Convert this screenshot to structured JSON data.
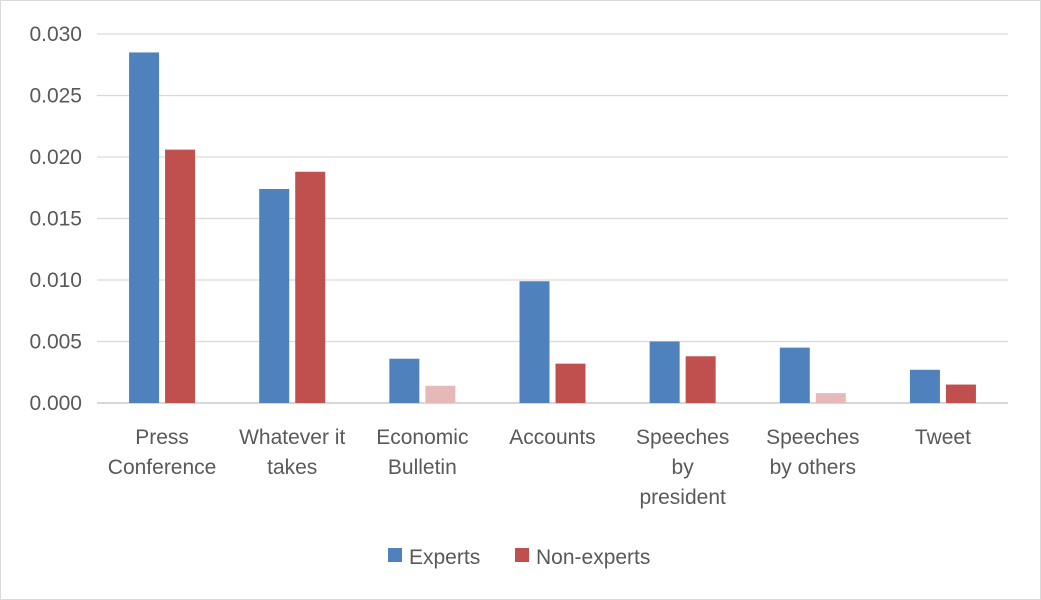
{
  "chart_data": {
    "type": "bar",
    "title": "",
    "xlabel": "",
    "ylabel": "",
    "ylim": [
      0,
      0.03
    ],
    "yticks": [
      "0.000",
      "0.005",
      "0.010",
      "0.015",
      "0.020",
      "0.025",
      "0.030"
    ],
    "ytick_values": [
      0,
      0.005,
      0.01,
      0.015,
      0.02,
      0.025,
      0.03
    ],
    "grid": true,
    "legend_position": "bottom",
    "categories": [
      [
        "Press",
        "Conference"
      ],
      [
        "Whatever it",
        "takes"
      ],
      [
        "Economic",
        "Bulletin"
      ],
      [
        "Accounts"
      ],
      [
        "Speeches",
        "by",
        "president"
      ],
      [
        "Speeches",
        "by others"
      ],
      [
        "Tweet"
      ]
    ],
    "series": [
      {
        "name": "Experts",
        "color": "#4f81bd",
        "values": [
          0.0285,
          0.0174,
          0.0036,
          0.0099,
          0.005,
          0.0045,
          0.0027
        ],
        "faded": [
          false,
          false,
          false,
          false,
          false,
          false,
          false
        ]
      },
      {
        "name": "Non-experts",
        "color": "#c0504d",
        "faded_color": "#e6b9b8",
        "values": [
          0.0206,
          0.0188,
          0.0014,
          0.0032,
          0.0038,
          0.0008,
          0.0015
        ],
        "faded": [
          false,
          false,
          true,
          false,
          false,
          true,
          false
        ]
      }
    ]
  }
}
